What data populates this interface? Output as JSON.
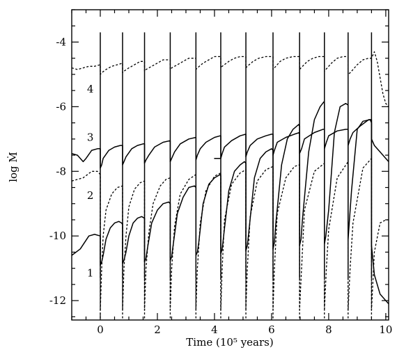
{
  "chart_data": {
    "type": "line",
    "title": "",
    "xlabel": "Time (10⁵ years)",
    "ylabel": "log Ṁ",
    "xlim": [
      -1.0,
      10.1
    ],
    "ylim": [
      -12.6,
      -3.0
    ],
    "xticks_major": [
      0,
      2,
      4,
      6,
      8,
      10
    ],
    "xtick_labels": [
      "0",
      "2",
      "4",
      "6",
      "8",
      "10"
    ],
    "xticks_minor_step": 0.5,
    "yticks_major": [
      -4,
      -6,
      -8,
      -10,
      -12
    ],
    "ytick_labels": [
      "-4",
      "-6",
      "-8",
      "-10",
      "-12"
    ],
    "yticks_minor_step": 0.5,
    "grid": false,
    "outburst_times": [
      0.0,
      0.78,
      1.55,
      2.45,
      3.35,
      4.22,
      5.1,
      6.05,
      6.98,
      7.85,
      8.68,
      9.5
    ],
    "series": [
      {
        "name": "1",
        "style": "solid",
        "x": [
          -1.0,
          -0.7,
          -0.4,
          -0.2,
          0.0,
          0.0,
          0.05,
          0.1,
          0.2,
          0.35,
          0.5,
          0.65,
          0.75,
          0.78,
          0.78,
          0.83,
          0.9,
          1.0,
          1.15,
          1.3,
          1.45,
          1.55,
          1.55,
          1.6,
          1.65,
          1.8,
          2.0,
          2.2,
          2.4,
          2.45,
          2.45,
          2.5,
          2.55,
          2.7,
          2.9,
          3.1,
          3.3,
          3.35,
          3.35,
          3.4,
          3.45,
          3.6,
          3.8,
          4.0,
          4.2,
          4.22,
          4.22,
          4.27,
          4.32,
          4.5,
          4.7,
          4.9,
          5.05,
          5.1,
          5.1,
          5.15,
          5.2,
          5.4,
          5.6,
          5.8,
          6.0,
          6.05,
          6.05,
          6.1,
          6.15,
          6.35,
          6.55,
          6.75,
          6.95,
          6.98,
          6.98,
          7.03,
          7.08,
          7.3,
          7.5,
          7.7,
          7.83,
          7.85,
          7.85,
          7.9,
          8.0,
          8.2,
          8.4,
          8.6,
          8.68,
          8.68,
          8.8,
          9.0,
          9.2,
          9.45,
          9.5,
          9.5,
          9.6,
          9.8,
          10.0,
          10.1
        ],
        "y": [
          -10.6,
          -10.4,
          -10.0,
          -9.95,
          -10.0,
          -10.9,
          -10.8,
          -10.6,
          -10.1,
          -9.75,
          -9.6,
          -9.55,
          -9.6,
          -9.65,
          -10.85,
          -10.75,
          -10.5,
          -10.0,
          -9.6,
          -9.45,
          -9.4,
          -9.45,
          -10.8,
          -10.7,
          -10.4,
          -9.6,
          -9.2,
          -9.0,
          -8.95,
          -9.0,
          -10.75,
          -10.65,
          -10.3,
          -9.3,
          -8.8,
          -8.5,
          -8.45,
          -8.5,
          -10.6,
          -10.5,
          -10.2,
          -9.0,
          -8.4,
          -8.2,
          -8.1,
          -8.15,
          -10.55,
          -10.4,
          -10.0,
          -8.6,
          -8.0,
          -7.8,
          -7.7,
          -7.75,
          -10.45,
          -10.3,
          -9.9,
          -8.2,
          -7.6,
          -7.4,
          -7.3,
          -7.35,
          -10.4,
          -10.2,
          -9.6,
          -7.8,
          -7.0,
          -6.7,
          -6.55,
          -6.6,
          -10.3,
          -10.1,
          -9.5,
          -7.4,
          -6.4,
          -6.0,
          -5.85,
          -5.9,
          -10.25,
          -10.0,
          -9.2,
          -6.8,
          -6.0,
          -5.9,
          -5.95,
          -10.1,
          -8.6,
          -6.7,
          -6.45,
          -6.4,
          -6.5,
          -10.3,
          -11.2,
          -11.8,
          -12.0,
          -12.1
        ]
      },
      {
        "name": "2",
        "style": "dashed",
        "x": [
          -1.0,
          -0.6,
          -0.3,
          -0.1,
          0.0,
          0.0,
          0.05,
          0.1,
          0.2,
          0.4,
          0.6,
          0.78,
          0.78,
          0.83,
          0.9,
          1.0,
          1.2,
          1.4,
          1.55,
          1.55,
          1.6,
          1.7,
          1.85,
          2.1,
          2.3,
          2.45,
          2.45,
          2.5,
          2.6,
          2.8,
          3.1,
          3.35,
          3.35,
          3.4,
          3.5,
          3.7,
          4.0,
          4.22,
          4.22,
          4.27,
          4.35,
          4.6,
          4.9,
          5.1,
          5.1,
          5.15,
          5.25,
          5.5,
          5.8,
          6.05,
          6.05,
          6.1,
          6.2,
          6.5,
          6.8,
          6.98,
          6.98,
          7.05,
          7.15,
          7.5,
          7.85,
          7.85,
          7.92,
          8.0,
          8.3,
          8.68,
          8.68,
          8.75,
          8.85,
          9.2,
          9.5,
          9.5,
          9.6,
          9.8,
          10.0,
          10.1
        ],
        "y": [
          -8.3,
          -8.2,
          -8.0,
          -8.0,
          -8.1,
          -12.3,
          -11.0,
          -10.0,
          -9.2,
          -8.7,
          -8.5,
          -8.45,
          -12.3,
          -11.0,
          -10.0,
          -9.1,
          -8.55,
          -8.35,
          -8.3,
          -12.3,
          -11.0,
          -9.9,
          -9.0,
          -8.45,
          -8.25,
          -8.2,
          -12.3,
          -11.0,
          -9.7,
          -8.7,
          -8.25,
          -8.1,
          -12.3,
          -11.0,
          -9.6,
          -8.6,
          -8.15,
          -8.05,
          -12.3,
          -11.0,
          -9.5,
          -8.4,
          -8.05,
          -7.95,
          -12.3,
          -11.0,
          -9.4,
          -8.3,
          -7.95,
          -7.85,
          -12.3,
          -11.0,
          -9.3,
          -8.2,
          -7.85,
          -7.8,
          -12.3,
          -11.0,
          -9.2,
          -8.0,
          -7.75,
          -12.3,
          -11.0,
          -9.8,
          -8.2,
          -7.7,
          -12.3,
          -11.0,
          -9.6,
          -7.9,
          -7.6,
          -12.3,
          -10.5,
          -9.6,
          -9.5,
          -9.5
        ]
      },
      {
        "name": "3",
        "style": "solid",
        "x": [
          -1.0,
          -0.8,
          -0.6,
          -0.5,
          -0.3,
          -0.1,
          0.0,
          0.0,
          0.05,
          0.1,
          0.3,
          0.5,
          0.7,
          0.78,
          0.78,
          0.83,
          0.9,
          1.1,
          1.3,
          1.5,
          1.55,
          1.55,
          1.6,
          1.7,
          1.9,
          2.2,
          2.45,
          2.45,
          2.5,
          2.6,
          2.8,
          3.1,
          3.35,
          3.35,
          3.4,
          3.5,
          3.7,
          4.0,
          4.2,
          4.22,
          4.22,
          4.0,
          4.22,
          4.27,
          4.35,
          4.6,
          4.9,
          5.1,
          5.1,
          5.15,
          5.25,
          5.5,
          5.8,
          6.0,
          6.05,
          6.05,
          6.1,
          6.2,
          6.5,
          6.8,
          6.98,
          6.98,
          7.05,
          7.15,
          7.5,
          7.8,
          7.85,
          7.85,
          7.92,
          8.0,
          8.3,
          8.6,
          8.68,
          8.68,
          8.75,
          8.85,
          9.1,
          9.4,
          9.5,
          9.5,
          9.6,
          9.8,
          10.0,
          10.1
        ],
        "y": [
          -7.45,
          -7.5,
          -7.7,
          -7.6,
          -7.35,
          -7.3,
          -7.3,
          -7.9,
          -7.8,
          -7.6,
          -7.35,
          -7.25,
          -7.2,
          -7.2,
          -7.8,
          -7.7,
          -7.55,
          -7.3,
          -7.2,
          -7.15,
          -7.15,
          -7.75,
          -7.65,
          -7.5,
          -7.25,
          -7.1,
          -7.05,
          -7.7,
          -7.6,
          -7.4,
          -7.15,
          -7.0,
          -6.95,
          -7.65,
          -7.5,
          -7.3,
          -7.1,
          -6.95,
          -6.9,
          -6.9,
          -7.6,
          -7.6,
          -7.6,
          -7.45,
          -7.25,
          -7.05,
          -6.9,
          -6.85,
          -7.55,
          -7.4,
          -7.2,
          -7.0,
          -6.9,
          -6.85,
          -6.85,
          -7.5,
          -7.35,
          -7.1,
          -6.95,
          -6.85,
          -6.8,
          -7.45,
          -7.3,
          -7.0,
          -6.8,
          -6.7,
          -6.7,
          -7.3,
          -7.1,
          -6.9,
          -6.75,
          -6.7,
          -6.7,
          -7.2,
          -7.0,
          -6.8,
          -6.6,
          -6.4,
          -6.4,
          -7.0,
          -7.2,
          -7.4,
          -7.6,
          -7.7
        ]
      },
      {
        "name": "4",
        "style": "dashed",
        "x": [
          -1.0,
          -0.8,
          -0.6,
          -0.4,
          -0.2,
          0.0,
          0.0,
          0.05,
          0.2,
          0.4,
          0.6,
          0.78,
          0.78,
          0.83,
          1.0,
          1.2,
          1.4,
          1.55,
          1.55,
          1.6,
          1.8,
          2.0,
          2.2,
          2.45,
          2.45,
          2.5,
          2.7,
          2.9,
          3.1,
          3.35,
          3.35,
          3.4,
          3.6,
          3.8,
          4.0,
          4.22,
          4.22,
          4.27,
          4.5,
          4.7,
          4.9,
          5.1,
          5.1,
          5.15,
          5.35,
          5.55,
          5.8,
          6.05,
          6.05,
          6.1,
          6.3,
          6.5,
          6.75,
          6.98,
          6.98,
          7.03,
          7.25,
          7.45,
          7.65,
          7.85,
          7.85,
          7.9,
          8.1,
          8.3,
          8.5,
          8.68,
          8.68,
          8.75,
          9.0,
          9.2,
          9.4,
          9.5,
          9.6,
          9.7,
          9.8,
          9.9,
          10.0,
          10.1
        ],
        "y": [
          -4.8,
          -4.85,
          -4.8,
          -4.75,
          -4.75,
          -4.7,
          -5.0,
          -4.95,
          -4.85,
          -4.75,
          -4.7,
          -4.65,
          -4.95,
          -4.9,
          -4.8,
          -4.7,
          -4.6,
          -4.6,
          -4.9,
          -4.85,
          -4.75,
          -4.65,
          -4.55,
          -4.55,
          -4.85,
          -4.8,
          -4.7,
          -4.6,
          -4.5,
          -4.5,
          -4.85,
          -4.8,
          -4.65,
          -4.55,
          -4.45,
          -4.45,
          -4.8,
          -4.75,
          -4.6,
          -4.5,
          -4.45,
          -4.45,
          -4.8,
          -4.75,
          -4.6,
          -4.5,
          -4.45,
          -4.45,
          -4.85,
          -4.8,
          -4.6,
          -4.5,
          -4.45,
          -4.45,
          -4.85,
          -4.8,
          -4.6,
          -4.5,
          -4.45,
          -4.45,
          -4.9,
          -4.85,
          -4.65,
          -4.5,
          -4.45,
          -4.45,
          -5.0,
          -4.95,
          -4.7,
          -4.55,
          -4.5,
          -4.5,
          -4.3,
          -4.6,
          -5.1,
          -5.6,
          -5.9,
          -6.0
        ]
      }
    ],
    "curve_labels": [
      {
        "text": "1",
        "x": -0.35,
        "y": -11.15
      },
      {
        "text": "2",
        "x": -0.35,
        "y": -8.75
      },
      {
        "text": "3",
        "x": -0.35,
        "y": -6.95
      },
      {
        "text": "4",
        "x": -0.35,
        "y": -5.45
      }
    ]
  }
}
